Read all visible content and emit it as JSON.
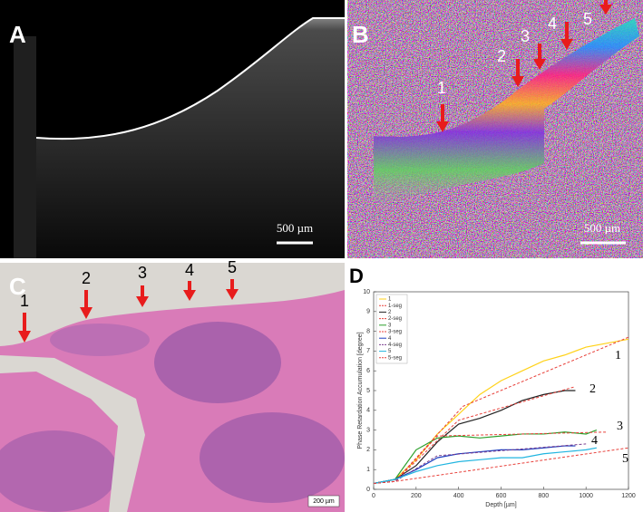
{
  "panels": {
    "a": {
      "label": "A",
      "scale_bar": "500 µm"
    },
    "b": {
      "label": "B",
      "scale_bar": "500 µm",
      "markers": [
        "1",
        "2",
        "3",
        "4",
        "5"
      ]
    },
    "c": {
      "label": "C",
      "scale_bar": "200 µm",
      "markers": [
        "1",
        "2",
        "3",
        "4",
        "5"
      ]
    },
    "d": {
      "label": "D"
    }
  },
  "chart_data": {
    "type": "line",
    "xlabel": "Depth [µm]",
    "ylabel": "Phase Retardation Accumulation [degree]",
    "xlim": [
      0,
      1200
    ],
    "xticks": [
      0,
      200,
      400,
      600,
      800,
      1000,
      1200
    ],
    "ylim": [
      0,
      10
    ],
    "yticks": [
      0,
      1,
      2,
      3,
      4,
      5,
      6,
      7,
      8,
      9,
      10
    ],
    "legend": "upper left",
    "annotations": [
      "1",
      "2",
      "3",
      "4",
      "5"
    ],
    "series": [
      {
        "name": "1",
        "color": "#ffd21a",
        "style": "solid",
        "x": [
          0,
          100,
          200,
          300,
          400,
          500,
          600,
          700,
          800,
          900,
          1000,
          1100,
          1200
        ],
        "values": [
          0.3,
          0.5,
          1.5,
          2.8,
          3.8,
          4.8,
          5.5,
          6,
          6.5,
          6.8,
          7.2,
          7.4,
          7.6
        ]
      },
      {
        "name": "1-seg",
        "color": "#e8403a",
        "style": "dashed",
        "x": [
          0,
          100,
          420,
          1200
        ],
        "values": [
          0.3,
          0.4,
          4.2,
          7.7
        ]
      },
      {
        "name": "2",
        "color": "#222222",
        "style": "solid",
        "x": [
          0,
          100,
          200,
          300,
          400,
          500,
          600,
          700,
          800,
          900,
          950
        ],
        "values": [
          0.3,
          0.5,
          1.2,
          2.4,
          3.3,
          3.6,
          4.0,
          4.5,
          4.8,
          5.0,
          5.0
        ]
      },
      {
        "name": "2-seg",
        "color": "#e8403a",
        "style": "dashed",
        "x": [
          0,
          100,
          400,
          950
        ],
        "values": [
          0.3,
          0.4,
          3.5,
          5.2
        ]
      },
      {
        "name": "3",
        "color": "#2ca02c",
        "style": "solid",
        "x": [
          0,
          100,
          200,
          300,
          400,
          500,
          600,
          700,
          800,
          900,
          1000,
          1050
        ],
        "values": [
          0.3,
          0.5,
          2.0,
          2.6,
          2.7,
          2.6,
          2.7,
          2.8,
          2.8,
          2.9,
          2.8,
          3.0
        ]
      },
      {
        "name": "3-seg",
        "color": "#e8403a",
        "style": "dashed",
        "x": [
          0,
          100,
          300,
          1100
        ],
        "values": [
          0.3,
          0.4,
          2.7,
          2.9
        ]
      },
      {
        "name": "4",
        "color": "#1f3fbf",
        "style": "solid",
        "x": [
          0,
          100,
          200,
          300,
          400,
          500,
          600,
          700,
          800,
          900,
          950
        ],
        "values": [
          0.3,
          0.5,
          1.0,
          1.6,
          1.8,
          1.9,
          2.0,
          2.0,
          2.1,
          2.2,
          2.2
        ]
      },
      {
        "name": "4-seg",
        "color": "#7a3d8f",
        "style": "dashed",
        "x": [
          0,
          100,
          300,
          1000
        ],
        "values": [
          0.3,
          0.4,
          1.7,
          2.3
        ]
      },
      {
        "name": "5",
        "color": "#21b5e0",
        "style": "solid",
        "x": [
          0,
          100,
          200,
          300,
          400,
          500,
          600,
          700,
          800,
          900,
          1000,
          1050
        ],
        "values": [
          0.3,
          0.5,
          0.9,
          1.2,
          1.4,
          1.5,
          1.6,
          1.6,
          1.8,
          1.9,
          2.0,
          2.1
        ]
      },
      {
        "name": "5-seg",
        "color": "#e8403a",
        "style": "dashed",
        "x": [
          0,
          100,
          1200
        ],
        "values": [
          0.3,
          0.4,
          2.1
        ]
      }
    ]
  }
}
